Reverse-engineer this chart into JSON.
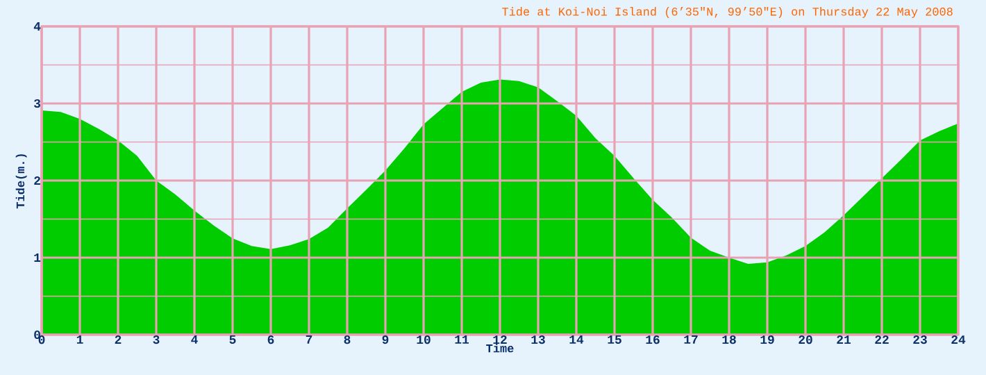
{
  "chart_data": {
    "type": "area",
    "title": "Tide at Koi-Noi Island (6’35\"N, 99’50\"E) on Thursday 22 May 2008",
    "xlabel": "Time",
    "ylabel": "Tide(m.)",
    "x": [
      0,
      0.5,
      1,
      1.5,
      2,
      2.5,
      3,
      3.5,
      4,
      4.5,
      5,
      5.5,
      6,
      6.5,
      7,
      7.5,
      8,
      8.5,
      9,
      9.5,
      10,
      10.5,
      11,
      11.5,
      12,
      12.5,
      13,
      13.5,
      14,
      14.5,
      15,
      15.5,
      16,
      16.5,
      17,
      17.5,
      18,
      18.5,
      19,
      19.5,
      20,
      20.5,
      21,
      21.5,
      22,
      22.5,
      23,
      23.5,
      24
    ],
    "values": [
      2.91,
      2.89,
      2.8,
      2.67,
      2.52,
      2.32,
      2.0,
      1.82,
      1.61,
      1.42,
      1.25,
      1.15,
      1.11,
      1.16,
      1.24,
      1.39,
      1.64,
      1.88,
      2.13,
      2.42,
      2.73,
      2.94,
      3.15,
      3.27,
      3.31,
      3.29,
      3.21,
      3.03,
      2.84,
      2.55,
      2.32,
      2.03,
      1.75,
      1.52,
      1.26,
      1.09,
      1.0,
      0.92,
      0.94,
      1.03,
      1.15,
      1.33,
      1.55,
      1.79,
      2.03,
      2.27,
      2.52,
      2.64,
      2.74
    ],
    "color": "#00cc00",
    "xlim": [
      0,
      24
    ],
    "ylim": [
      0,
      4
    ],
    "xticks": [
      0,
      1,
      2,
      3,
      4,
      5,
      6,
      7,
      8,
      9,
      10,
      11,
      12,
      13,
      14,
      15,
      16,
      17,
      18,
      19,
      20,
      21,
      22,
      23,
      24
    ],
    "yticks": [
      0,
      {
        "value": 0.5,
        "label": null
      },
      1,
      {
        "value": 1.5,
        "label": null
      },
      2,
      {
        "value": 2.5,
        "label": null
      },
      3,
      {
        "value": 3.5,
        "label": null
      },
      4
    ],
    "grid": true
  }
}
